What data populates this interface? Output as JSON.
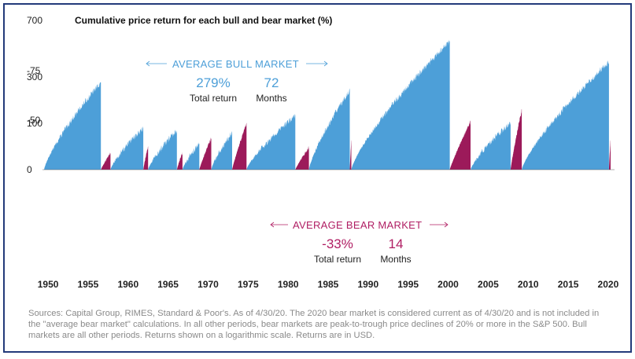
{
  "chart_data": {
    "type": "area",
    "title": "Cumulative price return for each bull and bear market (%)",
    "y_scale": "log",
    "y_ticks": [
      {
        "value": 700,
        "label": "700"
      },
      {
        "value": 300,
        "label": "300"
      },
      {
        "value": 100,
        "label": "100"
      },
      {
        "value": 0,
        "label": "0"
      },
      {
        "value": -50,
        "label": "-50"
      },
      {
        "value": -75,
        "label": "-75"
      }
    ],
    "x_ticks": [
      1950,
      1955,
      1960,
      1965,
      1970,
      1975,
      1980,
      1985,
      1990,
      1995,
      2000,
      2005,
      2010,
      2015,
      2020
    ],
    "xlim": [
      1949.5,
      2020.5
    ],
    "grid": false,
    "colors": {
      "bull": "#4d9fd8",
      "bear": "#9c1a5a",
      "bull_text": "#4d9fd8",
      "bear_text": "#b01e63"
    },
    "series": [
      {
        "name": "Bull markets",
        "periods": [
          {
            "start": 1949.5,
            "end": 1956.6,
            "peak": 270
          },
          {
            "start": 1957.8,
            "end": 1961.9,
            "peak": 86
          },
          {
            "start": 1962.5,
            "end": 1966.1,
            "peak": 80
          },
          {
            "start": 1966.8,
            "end": 1968.9,
            "peak": 48
          },
          {
            "start": 1970.4,
            "end": 1973.0,
            "peak": 74
          },
          {
            "start": 1974.8,
            "end": 1980.9,
            "peak": 124
          },
          {
            "start": 1982.6,
            "end": 1987.7,
            "peak": 229
          },
          {
            "start": 1987.9,
            "end": 2000.2,
            "peak": 582
          },
          {
            "start": 2002.8,
            "end": 2007.8,
            "peak": 102
          },
          {
            "start": 2009.2,
            "end": 2020.1,
            "peak": 401
          }
        ]
      },
      {
        "name": "Bear markets",
        "periods": [
          {
            "start": 1956.6,
            "end": 1957.8,
            "trough": -21
          },
          {
            "start": 1961.9,
            "end": 1962.5,
            "trough": -28
          },
          {
            "start": 1966.1,
            "end": 1966.8,
            "trough": -22
          },
          {
            "start": 1968.9,
            "end": 1970.4,
            "trough": -36
          },
          {
            "start": 1973.0,
            "end": 1974.8,
            "trough": -48
          },
          {
            "start": 1980.9,
            "end": 1982.6,
            "trough": -27
          },
          {
            "start": 1987.7,
            "end": 1987.9,
            "trough": -34
          },
          {
            "start": 2000.2,
            "end": 2002.8,
            "trough": -49
          },
          {
            "start": 2007.8,
            "end": 2009.2,
            "trough": -57
          },
          {
            "start": 2020.1,
            "end": 2020.3,
            "trough": -34
          }
        ]
      }
    ],
    "annotations": {
      "bull": {
        "heading": "AVERAGE BULL MARKET",
        "return_value": "279%",
        "return_label": "Total return",
        "months_value": "72",
        "months_label": "Months"
      },
      "bear": {
        "heading": "AVERAGE BEAR MARKET",
        "return_value": "-33%",
        "return_label": "Total return",
        "months_value": "14",
        "months_label": "Months"
      }
    }
  },
  "footnote": "Sources: Capital Group, RIMES, Standard & Poor's. As of 4/30/20. The 2020 bear market is considered current as of 4/30/20 and is not included in the \"average bear market\" calculations. In all other periods, bear markets are peak-to-trough price declines of 20% or more in the S&P 500. Bull markets are all other periods. Returns shown on a logarithmic scale. Returns are in USD."
}
